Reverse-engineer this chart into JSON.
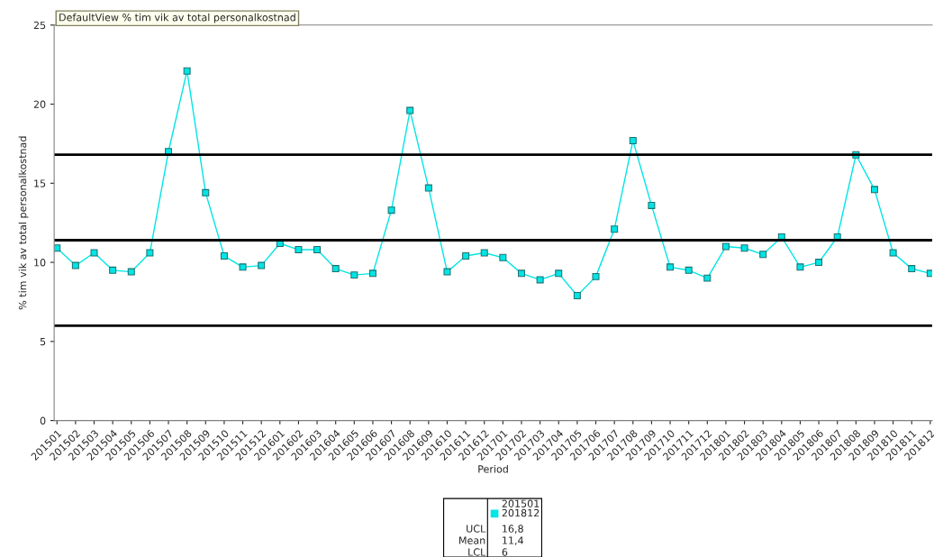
{
  "chart_data": {
    "type": "line",
    "title": "DefaultView % tim vik av total personalkostnad",
    "xlabel": "Period",
    "ylabel": "% tim vik av total personalkostnad",
    "categories": [
      "201501",
      "201502",
      "201503",
      "201504",
      "201505",
      "201506",
      "201507",
      "201508",
      "201509",
      "201510",
      "201511",
      "201512",
      "201601",
      "201602",
      "201603",
      "201604",
      "201605",
      "201606",
      "201607",
      "201608",
      "201609",
      "201610",
      "201611",
      "201612",
      "201701",
      "201702",
      "201703",
      "201704",
      "201705",
      "201706",
      "201707",
      "201708",
      "201709",
      "201710",
      "201711",
      "201712",
      "201801",
      "201802",
      "201803",
      "201804",
      "201805",
      "201806",
      "201807",
      "201808",
      "201809",
      "201810",
      "201811",
      "201812"
    ],
    "series": [
      {
        "name": "201501\n201812",
        "color": "#00e5e5",
        "values": [
          10.9,
          9.8,
          10.6,
          9.5,
          9.4,
          10.6,
          17.0,
          22.1,
          14.4,
          10.4,
          9.7,
          9.8,
          11.2,
          10.8,
          10.8,
          9.6,
          9.2,
          9.3,
          13.3,
          19.6,
          14.7,
          9.4,
          10.4,
          10.6,
          10.3,
          9.3,
          8.9,
          9.3,
          7.9,
          9.1,
          12.1,
          17.7,
          13.6,
          9.7,
          9.5,
          9.0,
          11.0,
          10.9,
          10.5,
          11.6,
          9.7,
          10.0,
          11.6,
          16.8,
          14.6,
          10.6,
          9.6,
          9.3
        ]
      }
    ],
    "annotations": [
      "16,8",
      "11,4",
      "6"
    ],
    "ylim": [
      0,
      25
    ],
    "yticks": [
      0,
      5,
      10,
      15,
      20,
      25
    ],
    "grid": false,
    "marker": "square",
    "line_style": "solid",
    "legend": "bottom",
    "ref_lines": [
      {
        "axis": "y",
        "value": 16.8,
        "label": "UCL",
        "color": "#000000"
      },
      {
        "axis": "y",
        "value": 11.4,
        "label": "Mean",
        "color": "#000000"
      },
      {
        "axis": "y",
        "value": 6,
        "label": "LCL",
        "color": "#000000"
      }
    ]
  }
}
